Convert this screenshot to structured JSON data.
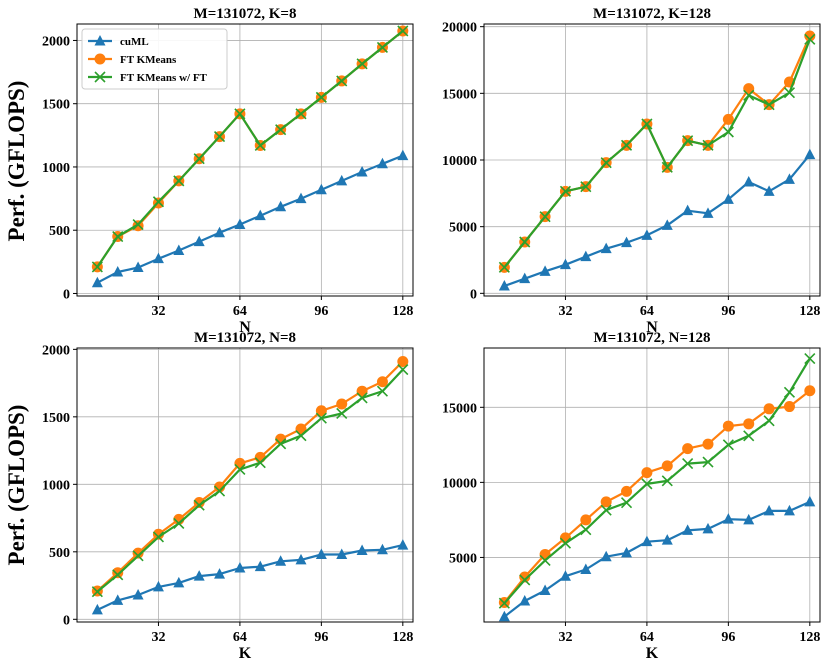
{
  "figure": {
    "ylabel": "Perf. (GFLOPS)"
  },
  "series_style": {
    "cuml": {
      "color": "#1f77b4",
      "marker": "triangle"
    },
    "ft": {
      "color": "#ff7f0e",
      "marker": "circle"
    },
    "ftwft": {
      "color": "#2ca02c",
      "marker": "x"
    }
  },
  "chart_data": [
    {
      "type": "line",
      "title": "M=131072, K=8",
      "xlabel": "N",
      "xticks": [
        32,
        64,
        96,
        128
      ],
      "yticks": [
        0,
        500,
        1000,
        1500,
        2000
      ],
      "xlim": [
        0,
        132
      ],
      "ylim": [
        -20,
        2130
      ],
      "legend": "top-left",
      "x": [
        8,
        16,
        24,
        32,
        40,
        48,
        56,
        64,
        72,
        80,
        88,
        96,
        104,
        112,
        120,
        128
      ],
      "series": [
        {
          "key": "cuml",
          "name": "cuML",
          "values": [
            85,
            170,
            205,
            275,
            340,
            410,
            480,
            545,
            615,
            685,
            750,
            820,
            890,
            960,
            1025,
            1090
          ]
        },
        {
          "key": "ft",
          "name": "FT KMeans",
          "values": [
            210,
            450,
            535,
            715,
            890,
            1065,
            1240,
            1420,
            1170,
            1295,
            1420,
            1550,
            1680,
            1815,
            1945,
            2075
          ]
        },
        {
          "key": "ftwft",
          "name": "FT KMeans w/ FT",
          "values": [
            210,
            450,
            545,
            725,
            890,
            1065,
            1240,
            1420,
            1170,
            1295,
            1420,
            1550,
            1680,
            1815,
            1945,
            2075
          ]
        }
      ]
    },
    {
      "type": "line",
      "title": "M=131072, K=128",
      "xlabel": "N",
      "xticks": [
        32,
        64,
        96,
        128
      ],
      "yticks": [
        0,
        5000,
        10000,
        15000,
        20000
      ],
      "xlim": [
        0,
        132
      ],
      "ylim": [
        -200,
        20200
      ],
      "legend": "",
      "x": [
        8,
        16,
        24,
        32,
        40,
        48,
        56,
        64,
        72,
        80,
        88,
        96,
        104,
        112,
        120,
        128
      ],
      "series": [
        {
          "key": "cuml",
          "name": "cuML",
          "values": [
            550,
            1100,
            1650,
            2150,
            2750,
            3350,
            3800,
            4350,
            5100,
            6200,
            6000,
            7050,
            8350,
            7650,
            8550,
            10400
          ]
        },
        {
          "key": "ft",
          "name": "FT KMeans",
          "values": [
            1950,
            3850,
            5750,
            7650,
            8000,
            9800,
            11100,
            12700,
            9450,
            11450,
            11100,
            13050,
            15350,
            14150,
            15850,
            19300
          ]
        },
        {
          "key": "ftwft",
          "name": "FT KMeans w/ FT",
          "values": [
            1950,
            3850,
            5750,
            7650,
            8000,
            9800,
            11100,
            12700,
            9450,
            11450,
            11100,
            12100,
            14850,
            14150,
            15050,
            19050
          ]
        }
      ]
    },
    {
      "type": "line",
      "title": "M=131072, N=8",
      "xlabel": "K",
      "xticks": [
        32,
        64,
        96,
        128
      ],
      "yticks": [
        0,
        500,
        1000,
        1500,
        2000
      ],
      "xlim": [
        0,
        132
      ],
      "ylim": [
        -20,
        2010
      ],
      "legend": "",
      "x": [
        8,
        16,
        24,
        32,
        40,
        48,
        56,
        64,
        72,
        80,
        88,
        96,
        104,
        112,
        120,
        128
      ],
      "series": [
        {
          "key": "cuml",
          "name": "cuML",
          "values": [
            70,
            140,
            180,
            240,
            270,
            320,
            335,
            380,
            390,
            430,
            440,
            480,
            480,
            510,
            515,
            550
          ]
        },
        {
          "key": "ft",
          "name": "FT KMeans",
          "values": [
            210,
            345,
            490,
            630,
            740,
            865,
            980,
            1155,
            1200,
            1335,
            1410,
            1545,
            1595,
            1690,
            1760,
            1910
          ]
        },
        {
          "key": "ftwft",
          "name": "FT KMeans w/ FT",
          "values": [
            205,
            330,
            470,
            610,
            710,
            845,
            950,
            1110,
            1160,
            1300,
            1360,
            1490,
            1525,
            1640,
            1690,
            1850
          ]
        }
      ]
    },
    {
      "type": "line",
      "title": "M=131072, N=128",
      "xlabel": "K",
      "xticks": [
        32,
        64,
        96,
        128
      ],
      "yticks": [
        5000,
        10000,
        15000
      ],
      "xlim": [
        0,
        132
      ],
      "ylim": [
        700,
        18950
      ],
      "legend": "",
      "x": [
        8,
        16,
        24,
        32,
        40,
        48,
        56,
        64,
        72,
        80,
        88,
        96,
        104,
        112,
        120,
        128
      ],
      "series": [
        {
          "key": "cuml",
          "name": "cuML",
          "values": [
            1050,
            2100,
            2800,
            3750,
            4200,
            5050,
            5300,
            6050,
            6150,
            6800,
            6900,
            7550,
            7500,
            8100,
            8100,
            8700
          ]
        },
        {
          "key": "ft",
          "name": "FT KMeans",
          "values": [
            2000,
            3700,
            5200,
            6300,
            7500,
            8700,
            9400,
            10650,
            11100,
            12250,
            12550,
            13750,
            13900,
            14900,
            15050,
            16100
          ]
        },
        {
          "key": "ftwft",
          "name": "FT KMeans w/ FT",
          "values": [
            1950,
            3500,
            4800,
            5950,
            6850,
            8150,
            8650,
            9900,
            10100,
            11250,
            11350,
            12500,
            13100,
            14100,
            16000,
            18250
          ]
        }
      ]
    }
  ]
}
